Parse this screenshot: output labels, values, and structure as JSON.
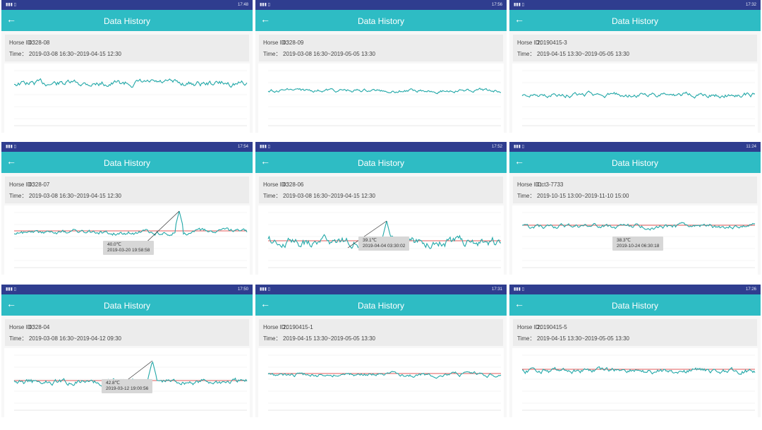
{
  "colors": {
    "status_bar": "#2f3d8f",
    "app_bar": "#2ebcc4",
    "line": "#22a8a8",
    "threshold": "#e05a5a"
  },
  "panels": [
    {
      "title": "Data History",
      "horse_label": "Horse ID：",
      "horse_id": "0328-08",
      "time_label": "Time：",
      "time_range": "2019-03-08 16:30~2019-04-15 12:30",
      "clock": "17:48",
      "tooltip": null
    },
    {
      "title": "Data History",
      "horse_label": "Horse ID：",
      "horse_id": "0328-09",
      "time_label": "Time：",
      "time_range": "2019-03-08 16:30~2019-05-05 13:30",
      "clock": "17:56",
      "tooltip": null
    },
    {
      "title": "Data History",
      "horse_label": "Horse ID：",
      "horse_id": "20190415-3",
      "time_label": "Time：",
      "time_range": "2019-04-15 13:30~2019-05-05 13:30",
      "clock": "17:32",
      "tooltip": null
    },
    {
      "title": "Data History",
      "horse_label": "Horse ID：",
      "horse_id": "0328-07",
      "time_label": "Time：",
      "time_range": "2019-03-08 16:30~2019-04-15 12:30",
      "clock": "17:54",
      "tooltip": {
        "temp": "40.0℃",
        "time": "2019-03-20 19:58:58"
      }
    },
    {
      "title": "Data History",
      "horse_label": "Horse ID：",
      "horse_id": "0328-06",
      "time_label": "Time：",
      "time_range": "2019-03-08 16:30~2019-04-15 12:30",
      "clock": "17:52",
      "tooltip": {
        "temp": "39.1℃",
        "time": "2019-04-04 03:30:02"
      }
    },
    {
      "title": "Data History",
      "horse_label": "Horse ID：",
      "horse_id": "Oct3-7733",
      "time_label": "Time：",
      "time_range": "2019-10-15 13:00~2019-11-10 15:00",
      "clock": "11:24",
      "tooltip": {
        "temp": "38.3℃",
        "time": "2019-10-24 06:30:18"
      }
    },
    {
      "title": "Data History",
      "horse_label": "Horse ID：",
      "horse_id": "0328-04",
      "time_label": "Time：",
      "time_range": "2019-03-08 16:30~2019-04-12 09:30",
      "clock": "17:50",
      "tooltip": {
        "temp": "42.8℃",
        "time": "2019-03-12 19:00:56"
      }
    },
    {
      "title": "Data History",
      "horse_label": "Horse ID：",
      "horse_id": "20190415-1",
      "time_label": "Time：",
      "time_range": "2019-04-15 13:30~2019-05-05 13:30",
      "clock": "17:31",
      "tooltip": null
    },
    {
      "title": "Data History",
      "horse_label": "Horse ID：",
      "horse_id": "20190415-5",
      "time_label": "Time：",
      "time_range": "2019-04-15 13:30~2019-05-05 13:30",
      "clock": "17:26",
      "tooltip": null
    }
  ]
}
